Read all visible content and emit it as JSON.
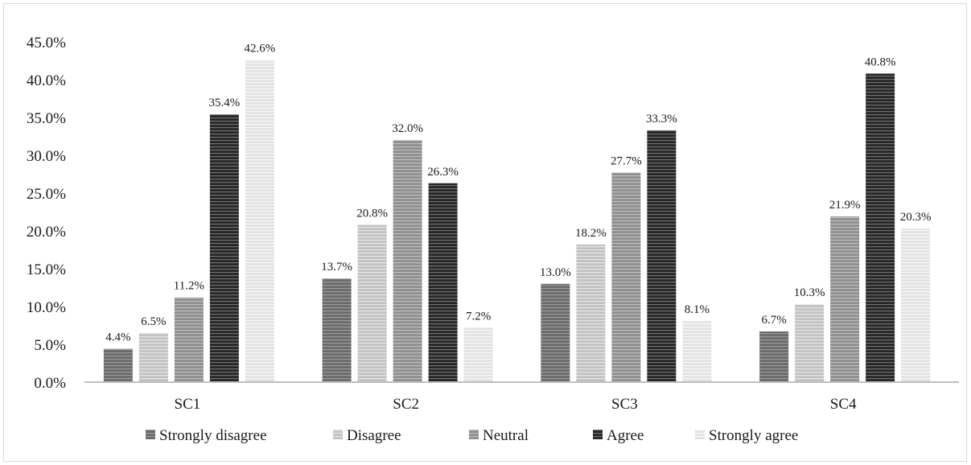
{
  "chart_data": {
    "type": "bar",
    "title": "",
    "xlabel": "",
    "ylabel": "",
    "categories": [
      "SC1",
      "SC2",
      "SC3",
      "SC4"
    ],
    "ylim": [
      0,
      45
    ],
    "yticks": [
      "0.0%",
      "5.0%",
      "10.0%",
      "15.0%",
      "20.0%",
      "25.0%",
      "30.0%",
      "35.0%",
      "40.0%",
      "45.0%"
    ],
    "grid": false,
    "legend_position": "bottom",
    "series": [
      {
        "name": "Strongly disagree",
        "values": [
          4.4,
          13.7,
          13.0,
          6.7
        ],
        "labels": [
          "4.4%",
          "13.7%",
          "13.0%",
          "6.7%"
        ],
        "color": "#6b6b6b",
        "stripe": "#9a9a9a"
      },
      {
        "name": "Disagree",
        "values": [
          6.5,
          20.8,
          18.2,
          10.3
        ],
        "labels": [
          "6.5%",
          "20.8%",
          "18.2%",
          "10.3%"
        ],
        "color": "#c2c2c2",
        "stripe": "#e6e6e6"
      },
      {
        "name": "Neutral",
        "values": [
          11.2,
          32.0,
          27.7,
          21.9
        ],
        "labels": [
          "11.2%",
          "32.0%",
          "27.7%",
          "21.9%"
        ],
        "color": "#8f8f8f",
        "stripe": "#bdbdbd"
      },
      {
        "name": "Agree",
        "values": [
          35.4,
          26.3,
          33.3,
          40.8
        ],
        "labels": [
          "35.4%",
          "26.3%",
          "33.3%",
          "40.8%"
        ],
        "color": "#262626",
        "stripe": "#707070"
      },
      {
        "name": "Strongly agree",
        "values": [
          42.6,
          7.2,
          8.1,
          20.3
        ],
        "labels": [
          "42.6%",
          "7.2%",
          "8.1%",
          "20.3%"
        ],
        "color": "#e3e3e3",
        "stripe": "#f7f7f7"
      }
    ]
  }
}
